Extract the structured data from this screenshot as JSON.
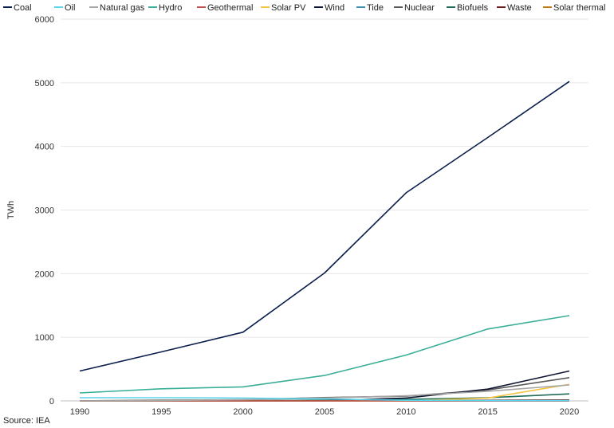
{
  "chart_data": {
    "type": "line",
    "title": "",
    "xlabel": "",
    "ylabel": "TWh",
    "ylim": [
      0,
      6000
    ],
    "yticks": [
      0,
      1000,
      2000,
      3000,
      4000,
      5000,
      6000
    ],
    "x": [
      1990,
      1995,
      2000,
      2005,
      2010,
      2015,
      2020
    ],
    "grid": "horizontal",
    "legend_position": "top",
    "series": [
      {
        "name": "Coal",
        "color": "#0b1f4b",
        "values": [
          470,
          770,
          1080,
          2010,
          3270,
          4140,
          5020
        ]
      },
      {
        "name": "Oil",
        "color": "#5bd3ea",
        "values": [
          50,
          50,
          45,
          30,
          10,
          5,
          5
        ]
      },
      {
        "name": "Natural gas",
        "color": "#a6a6a6",
        "values": [
          0,
          5,
          20,
          45,
          80,
          150,
          250
        ]
      },
      {
        "name": "Hydro",
        "color": "#3aaf97",
        "values": [
          125,
          190,
          220,
          400,
          720,
          1130,
          1340
        ]
      },
      {
        "name": "Geothermal",
        "color": "#c0504d",
        "values": [
          0,
          0,
          0,
          0,
          0,
          0,
          0
        ]
      },
      {
        "name": "Solar PV",
        "color": "#f5c342",
        "values": [
          0,
          0,
          0,
          0,
          1,
          45,
          260
        ]
      },
      {
        "name": "Wind",
        "color": "#101631",
        "values": [
          0,
          0,
          1,
          2,
          45,
          185,
          470
        ]
      },
      {
        "name": "Tide",
        "color": "#3b8fb0",
        "values": [
          0,
          0,
          0,
          0,
          0,
          0,
          0
        ]
      },
      {
        "name": "Nuclear",
        "color": "#595959",
        "values": [
          0,
          13,
          17,
          53,
          74,
          171,
          366
        ]
      },
      {
        "name": "Biofuels",
        "color": "#1f6b57",
        "values": [
          0,
          2,
          3,
          10,
          25,
          50,
          110
        ]
      },
      {
        "name": "Waste",
        "color": "#6b1e1e",
        "values": [
          0,
          0,
          0,
          2,
          5,
          10,
          15
        ]
      },
      {
        "name": "Solar thermal",
        "color": "#c07a10",
        "values": [
          0,
          0,
          0,
          0,
          0,
          1,
          2
        ]
      }
    ]
  },
  "source": "Source: IEA"
}
